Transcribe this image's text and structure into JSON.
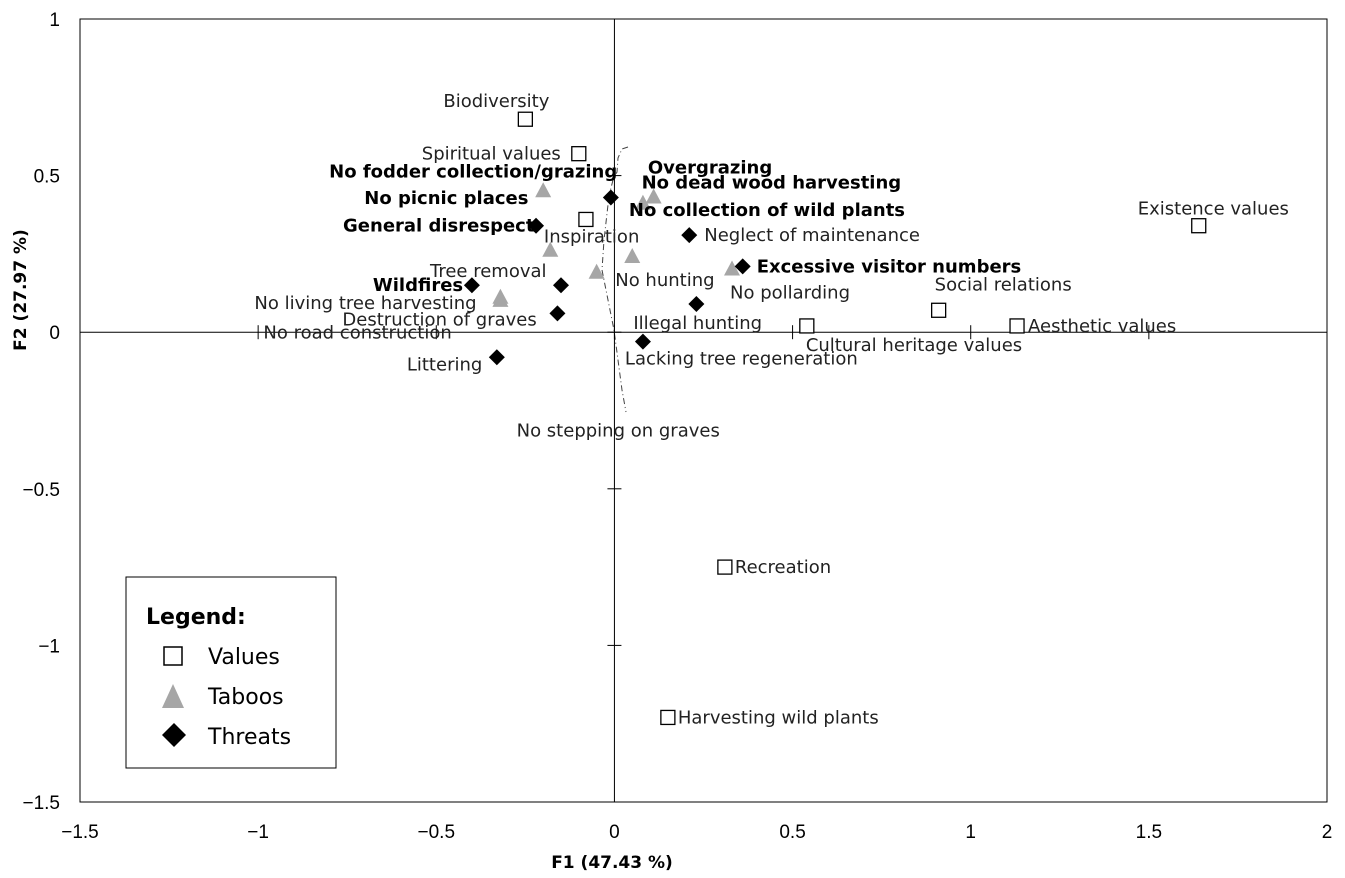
{
  "chart_data": {
    "type": "scatter",
    "xlabel": "F1 (47.43 %)",
    "ylabel": "F2 (27.97 %)",
    "xlim": [
      -1.5,
      2
    ],
    "ylim": [
      -1.5,
      1
    ],
    "xticks": [
      "−1.5",
      "−1",
      "−0.5",
      "0",
      "0.5",
      "1",
      "1.5",
      "2"
    ],
    "yticks": [
      "1",
      "0.5",
      "0",
      "−0.5",
      "−1",
      "−1.5"
    ],
    "legend": {
      "title": "Legend:",
      "placement": "bottom-left",
      "entries": [
        "Values",
        "Taboos",
        "Threats"
      ]
    },
    "series": [
      {
        "name": "Values",
        "marker": "square-open",
        "points": [
          {
            "label": "Biodiversity",
            "x": -0.25,
            "y": 0.68
          },
          {
            "label": "Spiritual values",
            "x": -0.1,
            "y": 0.57
          },
          {
            "label": "Inspiration",
            "x": -0.08,
            "y": 0.36
          },
          {
            "label": "Existence values",
            "x": 1.64,
            "y": 0.34
          },
          {
            "label": "Social relations",
            "x": 0.91,
            "y": 0.07
          },
          {
            "label": "Aesthetic values",
            "x": 1.13,
            "y": 0.02
          },
          {
            "label": "Cultural heritage values",
            "x": 0.54,
            "y": 0.02
          },
          {
            "label": "Recreation",
            "x": 0.31,
            "y": -0.75
          },
          {
            "label": "Harvesting wild plants",
            "x": 0.15,
            "y": -1.23
          }
        ]
      },
      {
        "name": "Taboos",
        "marker": "triangle",
        "points": [
          {
            "label": "No fodder collection/grazing",
            "x": -0.2,
            "y": 0.45,
            "bold": true
          },
          {
            "label": "No picnic places",
            "x": -0.18,
            "y": 0.26,
            "bold": true
          },
          {
            "label": "No dead wood harvesting",
            "x": 0.11,
            "y": 0.43,
            "bold": true
          },
          {
            "label": "No collection of wild plants",
            "x": 0.08,
            "y": 0.41,
            "bold": true
          },
          {
            "label": "No road construction",
            "x": -0.32,
            "y": 0.11
          },
          {
            "label": "No living tree harvesting",
            "x": -0.32,
            "y": 0.1
          },
          {
            "label": "No hunting",
            "x": 0.05,
            "y": 0.24
          },
          {
            "label": "No pollarding",
            "x": 0.33,
            "y": 0.2
          },
          {
            "label": "No stepping on graves",
            "x": -0.05,
            "y": 0.19
          }
        ]
      },
      {
        "name": "Threats",
        "marker": "diamond",
        "points": [
          {
            "label": "Overgrazing",
            "x": -0.01,
            "y": 0.43,
            "bold": true
          },
          {
            "label": "General disrespect",
            "x": -0.22,
            "y": 0.34,
            "bold": true
          },
          {
            "label": "Excessive visitor numbers",
            "x": 0.36,
            "y": 0.21,
            "bold": true
          },
          {
            "label": "Wildfires",
            "x": -0.4,
            "y": 0.15,
            "bold": true
          },
          {
            "label": "Neglect of maintenance",
            "x": 0.21,
            "y": 0.31
          },
          {
            "label": "Tree removal",
            "x": -0.15,
            "y": 0.15
          },
          {
            "label": "Illegal hunting",
            "x": 0.23,
            "y": 0.09
          },
          {
            "label": "Destruction of graves",
            "x": -0.16,
            "y": 0.06
          },
          {
            "label": "Littering",
            "x": -0.33,
            "y": -0.08
          },
          {
            "label": "Lacking tree regeneration",
            "x": 0.08,
            "y": -0.03
          }
        ]
      }
    ]
  }
}
